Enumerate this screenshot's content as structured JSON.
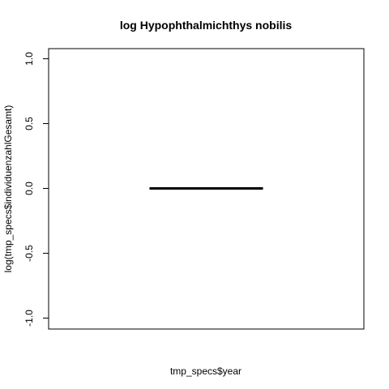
{
  "chart_data": {
    "type": "line",
    "title": "log Hypophthalmichthys nobilis",
    "xlabel": "tmp_specs$year",
    "ylabel": "log(tmp_specs$individuenzahlGesamt)",
    "ylim": [
      -1.0,
      1.0
    ],
    "yticks": [
      {
        "value": -1.0,
        "label": "-1.0"
      },
      {
        "value": -0.5,
        "label": "-0.5"
      },
      {
        "value": 0.0,
        "label": "0.0"
      },
      {
        "value": 0.5,
        "label": "0.5"
      },
      {
        "value": 1.0,
        "label": "1.0"
      }
    ],
    "xticks": [],
    "grid": false,
    "series": [
      {
        "color": "#000000",
        "x_fraction": [
          0.32,
          0.68
        ],
        "y": [
          0.0,
          0.0
        ]
      }
    ]
  },
  "colors": {
    "background": "#ffffff",
    "axis": "#000000",
    "line": "#000000"
  }
}
